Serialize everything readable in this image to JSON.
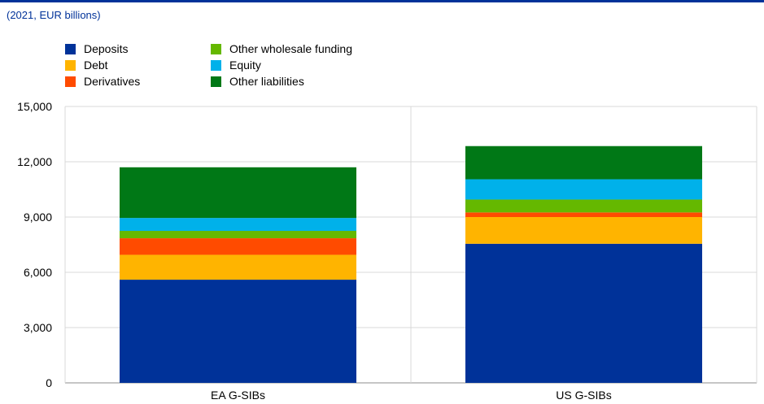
{
  "subtitle": "(2021, EUR billions)",
  "legend": [
    {
      "name": "Deposits",
      "color": "#003299"
    },
    {
      "name": "Debt",
      "color": "#FFB400"
    },
    {
      "name": "Derivatives",
      "color": "#FF4B00"
    },
    {
      "name": "Other wholesale funding",
      "color": "#65B800"
    },
    {
      "name": "Equity",
      "color": "#00B1EA"
    },
    {
      "name": "Other liabilities",
      "color": "#007816"
    }
  ],
  "chart_data": {
    "type": "bar",
    "stacked": true,
    "title": "",
    "subtitle": "(2021, EUR billions)",
    "xlabel": "",
    "ylabel": "",
    "categories": [
      "EA G-SIBs",
      "US G-SIBs"
    ],
    "ylim": [
      0,
      15000
    ],
    "yticks": [
      0,
      3000,
      6000,
      9000,
      12000,
      15000
    ],
    "ytick_labels": [
      "0",
      "3,000",
      "6,000",
      "9,000",
      "12,000",
      "15,000"
    ],
    "grid": true,
    "legend_position": "top-left",
    "series": [
      {
        "name": "Deposits",
        "color": "#003299",
        "values": [
          5600,
          7550
        ]
      },
      {
        "name": "Debt",
        "color": "#FFB400",
        "values": [
          1350,
          1450
        ]
      },
      {
        "name": "Derivatives",
        "color": "#FF4B00",
        "values": [
          900,
          250
        ]
      },
      {
        "name": "Other wholesale funding",
        "color": "#65B800",
        "values": [
          400,
          700
        ]
      },
      {
        "name": "Equity",
        "color": "#00B1EA",
        "values": [
          700,
          1100
        ]
      },
      {
        "name": "Other liabilities",
        "color": "#007816",
        "values": [
          2750,
          1800
        ]
      }
    ]
  }
}
